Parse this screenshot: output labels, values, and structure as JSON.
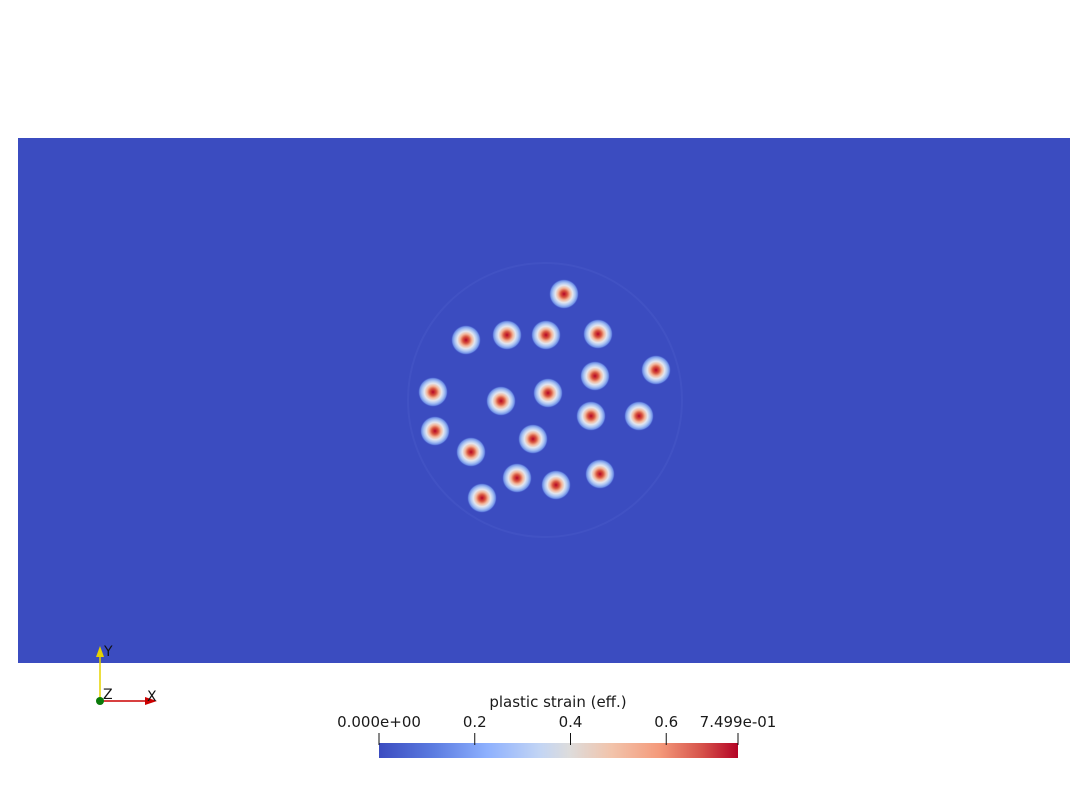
{
  "colors": {
    "background": "#ffffff",
    "domain_fill": "#3b4cc0",
    "colormap_low": "#3b4cc0",
    "colormap_mid": "#dddddd",
    "colormap_high": "#b40426"
  },
  "colorbar": {
    "title": "plastic strain (eff.)",
    "range": [
      0,
      0.7499
    ],
    "ticks": [
      {
        "value": 0.0,
        "label": "0.000e+00"
      },
      {
        "value": 0.2,
        "label": "0.2"
      },
      {
        "value": 0.4,
        "label": "0.4"
      },
      {
        "value": 0.6,
        "label": "0.6"
      },
      {
        "value": 0.7499,
        "label": "7.499e-01"
      }
    ]
  },
  "axes": {
    "x_label": "X",
    "y_label": "Y",
    "z_label": "Z",
    "x_color": "#cc0000",
    "y_color": "#e6d200",
    "z_color": "#0a7a0a"
  }
}
